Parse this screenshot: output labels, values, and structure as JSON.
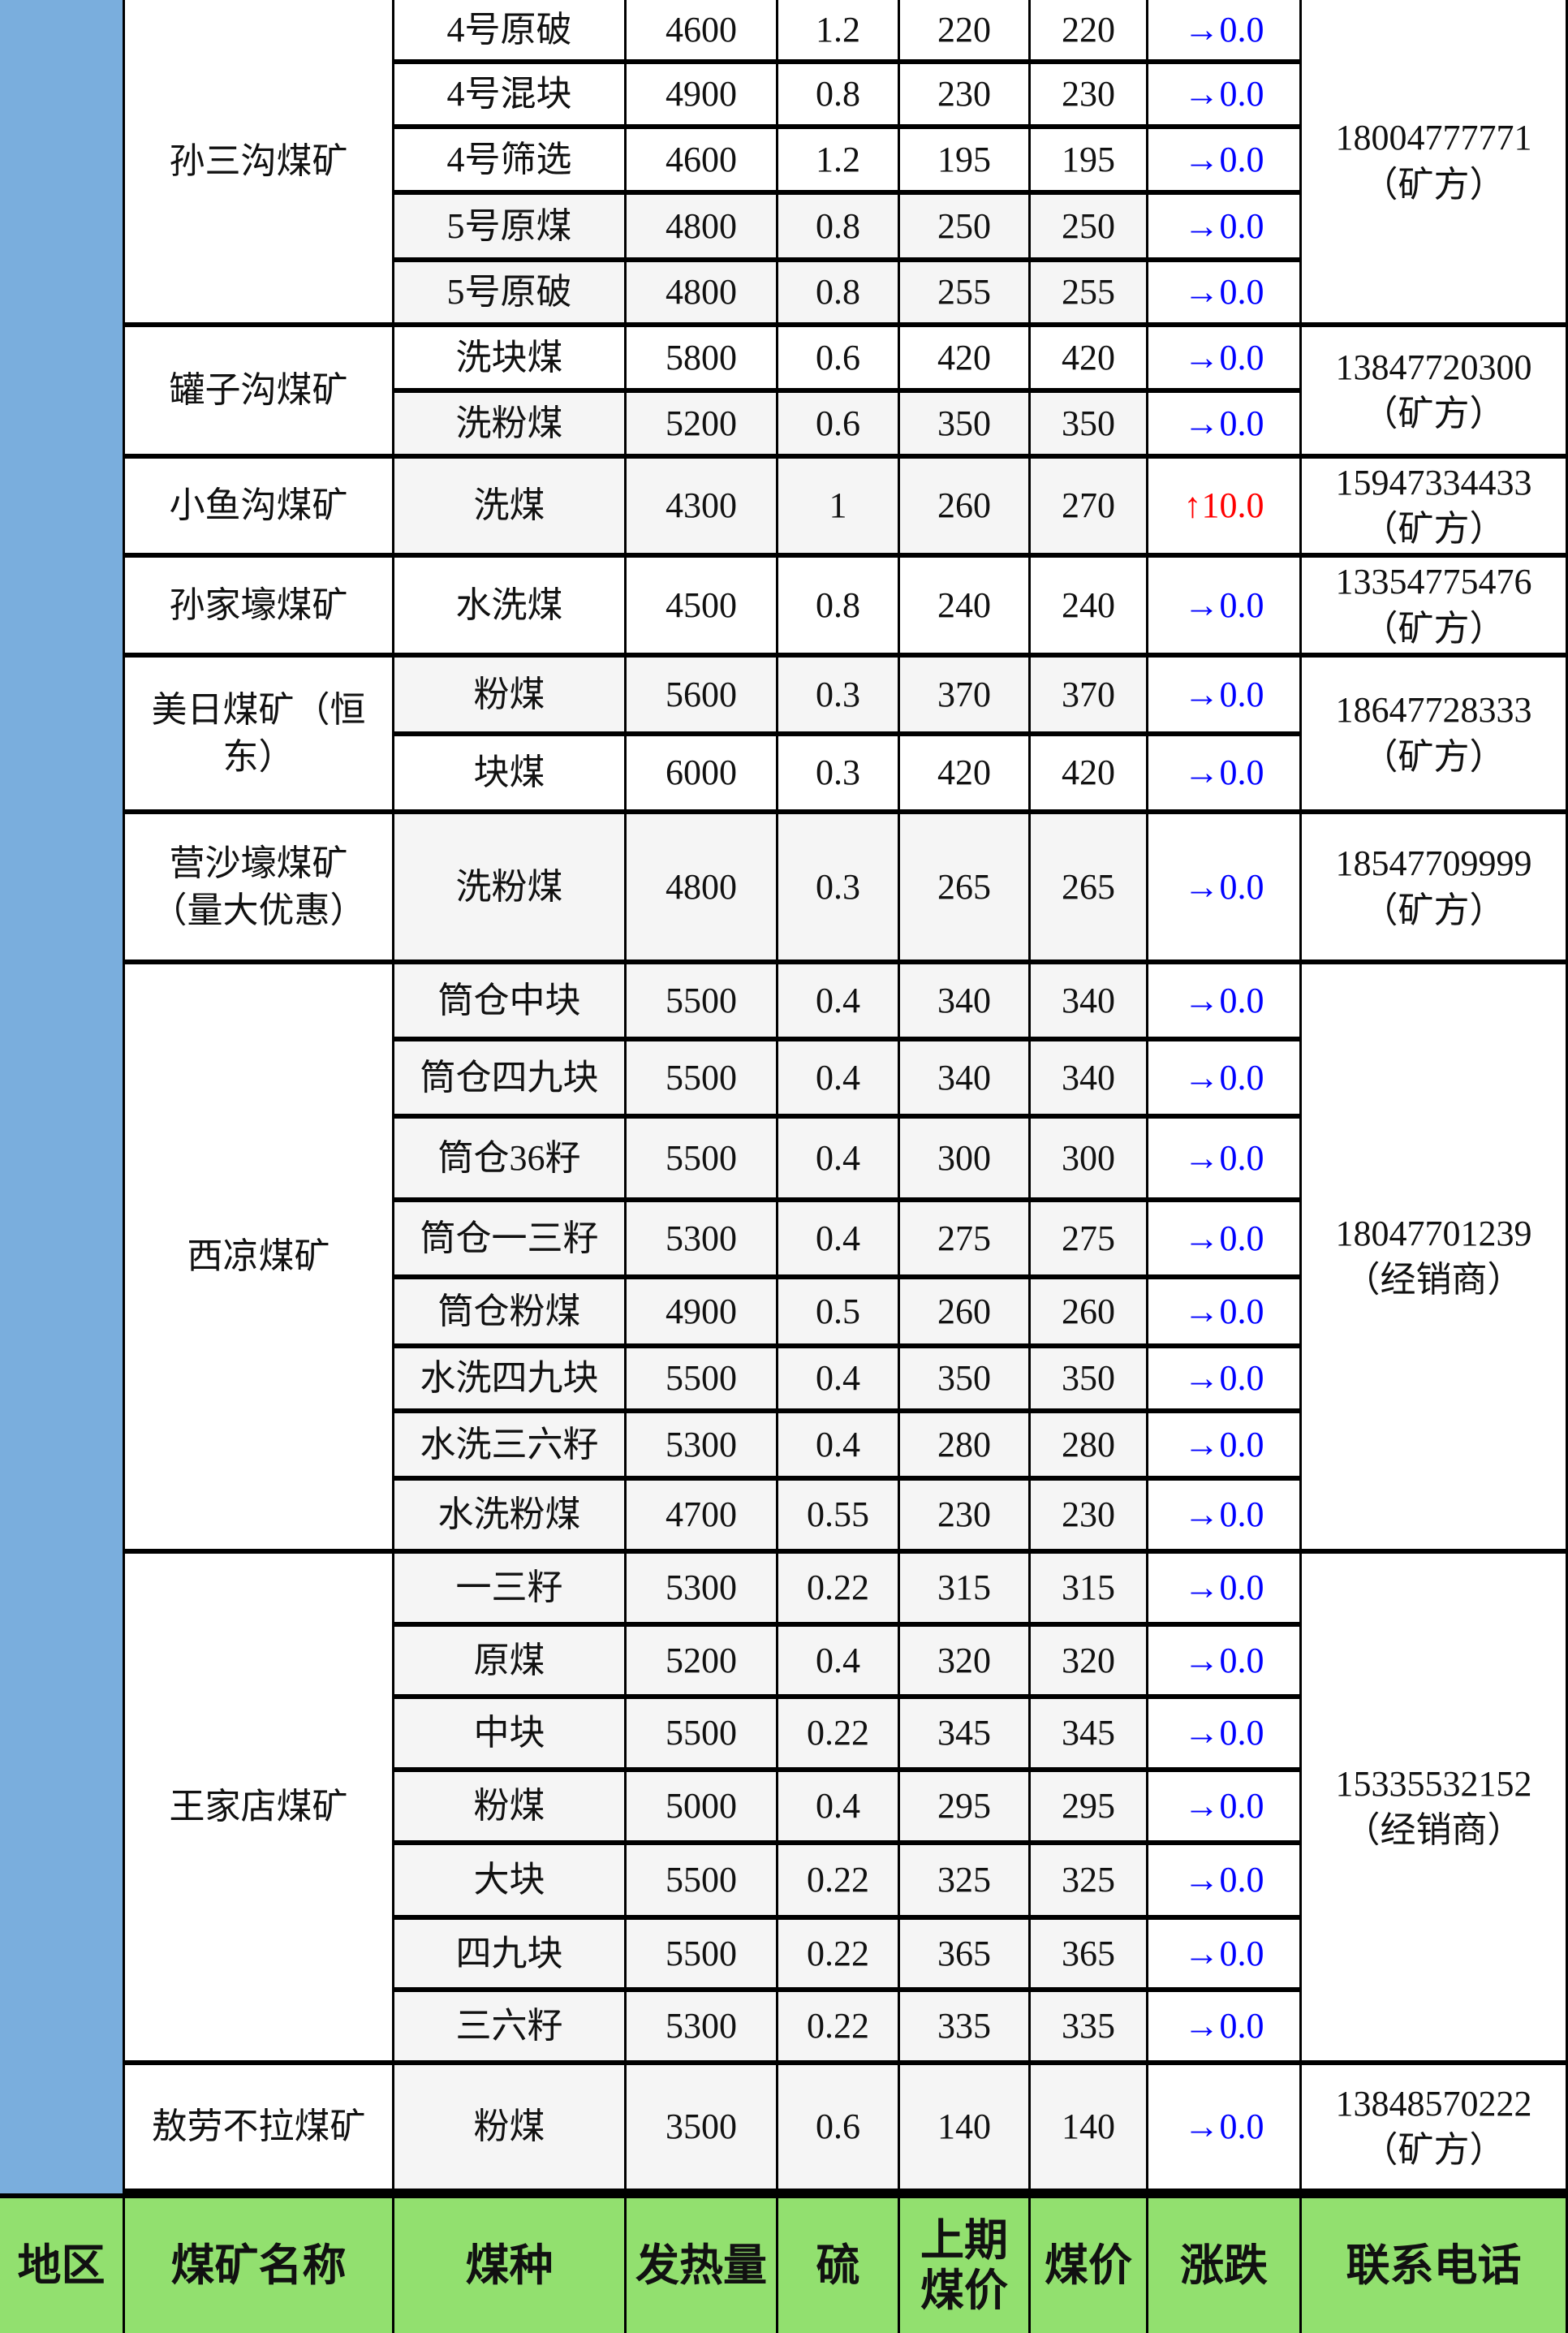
{
  "header": {
    "region": "地区",
    "mine_name": "煤矿名称",
    "coal_type": "煤种",
    "heat_value": "发热量",
    "sulfur": "硫",
    "prev_price": "上期煤价",
    "price": "煤价",
    "change": "涨跌",
    "phone": "联系电话"
  },
  "colors": {
    "region_bg": "#7aaedd",
    "header_bg": "#92e06f",
    "up": "#ff0000",
    "flat": "#0000ff"
  },
  "mines": [
    {
      "name": "孙三沟煤矿",
      "phone": "18004777771",
      "contact": "（矿方）",
      "items": [
        {
          "type": "4号原破",
          "heat": "4600",
          "sulfur": "1.2",
          "prev": "220",
          "price": "220",
          "dir": "flat",
          "arrow": "→",
          "change": "0.0"
        },
        {
          "type": "4号混块",
          "heat": "4900",
          "sulfur": "0.8",
          "prev": "230",
          "price": "230",
          "dir": "flat",
          "arrow": "→",
          "change": "0.0"
        },
        {
          "type": "4号筛选",
          "heat": "4600",
          "sulfur": "1.2",
          "prev": "195",
          "price": "195",
          "dir": "flat",
          "arrow": "→",
          "change": "0.0"
        },
        {
          "type": "5号原煤",
          "heat": "4800",
          "sulfur": "0.8",
          "prev": "250",
          "price": "250",
          "dir": "flat",
          "arrow": "→",
          "change": "0.0"
        },
        {
          "type": "5号原破",
          "heat": "4800",
          "sulfur": "0.8",
          "prev": "255",
          "price": "255",
          "dir": "flat",
          "arrow": "→",
          "change": "0.0"
        }
      ]
    },
    {
      "name": "罐子沟煤矿",
      "phone": "13847720300",
      "contact": "（矿方）",
      "items": [
        {
          "type": "洗块煤",
          "heat": "5800",
          "sulfur": "0.6",
          "prev": "420",
          "price": "420",
          "dir": "flat",
          "arrow": "→",
          "change": "0.0"
        },
        {
          "type": "洗粉煤",
          "heat": "5200",
          "sulfur": "0.6",
          "prev": "350",
          "price": "350",
          "dir": "flat",
          "arrow": "→",
          "change": "0.0"
        }
      ]
    },
    {
      "name": "小鱼沟煤矿",
      "phone": "15947334433",
      "contact": "（矿方）",
      "items": [
        {
          "type": "洗煤",
          "heat": "4300",
          "sulfur": "1",
          "prev": "260",
          "price": "270",
          "dir": "up",
          "arrow": "↑",
          "change": "10.0"
        }
      ]
    },
    {
      "name": "孙家壕煤矿",
      "phone": "13354775476",
      "contact": "（矿方）",
      "items": [
        {
          "type": "水洗煤",
          "heat": "4500",
          "sulfur": "0.8",
          "prev": "240",
          "price": "240",
          "dir": "flat",
          "arrow": "→",
          "change": "0.0"
        }
      ]
    },
    {
      "name": "美日煤矿（恒东）",
      "phone": "18647728333",
      "contact": "（矿方）",
      "items": [
        {
          "type": "粉煤",
          "heat": "5600",
          "sulfur": "0.3",
          "prev": "370",
          "price": "370",
          "dir": "flat",
          "arrow": "→",
          "change": "0.0"
        },
        {
          "type": "块煤",
          "heat": "6000",
          "sulfur": "0.3",
          "prev": "420",
          "price": "420",
          "dir": "flat",
          "arrow": "→",
          "change": "0.0"
        }
      ]
    },
    {
      "name": "营沙壕煤矿（量大优惠）",
      "phone": "18547709999",
      "contact": "（矿方）",
      "items": [
        {
          "type": "洗粉煤",
          "heat": "4800",
          "sulfur": "0.3",
          "prev": "265",
          "price": "265",
          "dir": "flat",
          "arrow": "→",
          "change": "0.0"
        }
      ]
    },
    {
      "name": "西凉煤矿",
      "phone": "18047701239",
      "contact": "（经销商）",
      "items": [
        {
          "type": "筒仓中块",
          "heat": "5500",
          "sulfur": "0.4",
          "prev": "340",
          "price": "340",
          "dir": "flat",
          "arrow": "→",
          "change": "0.0"
        },
        {
          "type": "筒仓四九块",
          "heat": "5500",
          "sulfur": "0.4",
          "prev": "340",
          "price": "340",
          "dir": "flat",
          "arrow": "→",
          "change": "0.0"
        },
        {
          "type": "筒仓36籽",
          "heat": "5500",
          "sulfur": "0.4",
          "prev": "300",
          "price": "300",
          "dir": "flat",
          "arrow": "→",
          "change": "0.0"
        },
        {
          "type": "筒仓一三籽",
          "heat": "5300",
          "sulfur": "0.4",
          "prev": "275",
          "price": "275",
          "dir": "flat",
          "arrow": "→",
          "change": "0.0"
        },
        {
          "type": "筒仓粉煤",
          "heat": "4900",
          "sulfur": "0.5",
          "prev": "260",
          "price": "260",
          "dir": "flat",
          "arrow": "→",
          "change": "0.0"
        },
        {
          "type": "水洗四九块",
          "heat": "5500",
          "sulfur": "0.4",
          "prev": "350",
          "price": "350",
          "dir": "flat",
          "arrow": "→",
          "change": "0.0"
        },
        {
          "type": "水洗三六籽",
          "heat": "5300",
          "sulfur": "0.4",
          "prev": "280",
          "price": "280",
          "dir": "flat",
          "arrow": "→",
          "change": "0.0"
        },
        {
          "type": "水洗粉煤",
          "heat": "4700",
          "sulfur": "0.55",
          "prev": "230",
          "price": "230",
          "dir": "flat",
          "arrow": "→",
          "change": "0.0"
        }
      ]
    },
    {
      "name": "王家店煤矿",
      "phone": "15335532152",
      "contact": "（经销商）",
      "items": [
        {
          "type": "一三籽",
          "heat": "5300",
          "sulfur": "0.22",
          "prev": "315",
          "price": "315",
          "dir": "flat",
          "arrow": "→",
          "change": "0.0"
        },
        {
          "type": "原煤",
          "heat": "5200",
          "sulfur": "0.4",
          "prev": "320",
          "price": "320",
          "dir": "flat",
          "arrow": "→",
          "change": "0.0"
        },
        {
          "type": "中块",
          "heat": "5500",
          "sulfur": "0.22",
          "prev": "345",
          "price": "345",
          "dir": "flat",
          "arrow": "→",
          "change": "0.0"
        },
        {
          "type": "粉煤",
          "heat": "5000",
          "sulfur": "0.4",
          "prev": "295",
          "price": "295",
          "dir": "flat",
          "arrow": "→",
          "change": "0.0"
        },
        {
          "type": "大块",
          "heat": "5500",
          "sulfur": "0.22",
          "prev": "325",
          "price": "325",
          "dir": "flat",
          "arrow": "→",
          "change": "0.0"
        },
        {
          "type": "四九块",
          "heat": "5500",
          "sulfur": "0.22",
          "prev": "365",
          "price": "365",
          "dir": "flat",
          "arrow": "→",
          "change": "0.0"
        },
        {
          "type": "三六籽",
          "heat": "5300",
          "sulfur": "0.22",
          "prev": "335",
          "price": "335",
          "dir": "flat",
          "arrow": "→",
          "change": "0.0"
        }
      ]
    },
    {
      "name": "敖劳不拉煤矿",
      "phone": "13848570222",
      "contact": "（矿方）",
      "items": [
        {
          "type": "粉煤",
          "heat": "3500",
          "sulfur": "0.6",
          "prev": "140",
          "price": "140",
          "dir": "flat",
          "arrow": "→",
          "change": "0.0"
        }
      ]
    }
  ]
}
